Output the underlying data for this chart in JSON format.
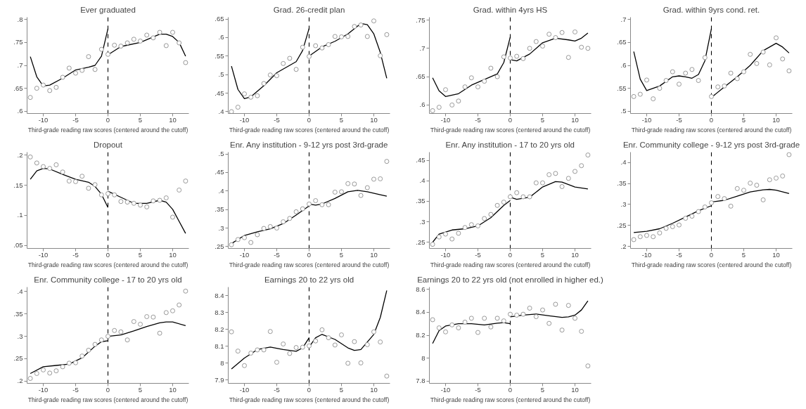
{
  "chart_data": [
    {
      "type": "scatter",
      "title": "Ever graduated",
      "xlabel": "Third-grade reading raw scores (centered around the cutoff)",
      "xlim": [
        -12.5,
        12.5
      ],
      "xticks": [
        -10,
        -5,
        0,
        5,
        10
      ],
      "ylim": [
        0.595,
        0.805
      ],
      "yticks": [
        {
          "value": 0.6,
          "label": ".6"
        },
        {
          "value": 0.65,
          "label": ".65"
        },
        {
          "value": 0.7,
          "label": ".7"
        },
        {
          "value": 0.75,
          "label": ".75"
        },
        {
          "value": 0.8,
          "label": ".8"
        }
      ],
      "ref_lines": [
        {
          "axis": "x",
          "value": 0,
          "line_style": "dashed",
          "color": "#000000"
        }
      ],
      "series": [
        {
          "type": "scatter",
          "marker": "circle",
          "color": "#999999",
          "x": [
            -12,
            -11,
            -10,
            -9,
            -8,
            -7,
            -6,
            -5,
            -4,
            -3,
            -2,
            -1,
            0,
            1,
            2,
            3,
            4,
            5,
            6,
            7,
            8,
            9,
            10,
            11,
            12
          ],
          "values": [
            0.63,
            0.65,
            0.657,
            0.645,
            0.652,
            0.674,
            0.694,
            0.683,
            0.689,
            0.719,
            0.691,
            0.735,
            0.724,
            0.744,
            0.742,
            0.749,
            0.757,
            0.753,
            0.766,
            0.76,
            0.772,
            0.743,
            0.772,
            0.749,
            0.706
          ]
        },
        {
          "type": "line",
          "color": "#000000",
          "x": [
            -12,
            -11,
            -10,
            -9,
            -7,
            -5,
            -3,
            -2,
            -1,
            0
          ],
          "values": [
            0.719,
            0.675,
            0.655,
            0.657,
            0.672,
            0.69,
            0.696,
            0.7,
            0.72,
            0.78
          ]
        },
        {
          "type": "line",
          "color": "#000000",
          "x": [
            0,
            2,
            5,
            8,
            9,
            10,
            11,
            12
          ],
          "values": [
            0.723,
            0.741,
            0.75,
            0.768,
            0.768,
            0.763,
            0.75,
            0.72
          ]
        }
      ]
    },
    {
      "type": "scatter",
      "title": "Grad. 26-credit plan",
      "xlabel": "Third-grade reading raw scores (centered around the cutoff)",
      "xlim": [
        -12.5,
        12.5
      ],
      "xticks": [
        -10,
        -5,
        0,
        5,
        10
      ],
      "ylim": [
        0.395,
        0.655
      ],
      "yticks": [
        {
          "value": 0.4,
          "label": ".4"
        },
        {
          "value": 0.45,
          "label": ".45"
        },
        {
          "value": 0.5,
          "label": ".5"
        },
        {
          "value": 0.55,
          "label": ".55"
        },
        {
          "value": 0.6,
          "label": ".6"
        },
        {
          "value": 0.65,
          "label": ".65"
        }
      ],
      "ref_lines": [
        {
          "axis": "x",
          "value": 0,
          "line_style": "dashed",
          "color": "#000000"
        }
      ],
      "series": [
        {
          "type": "scatter",
          "marker": "circle",
          "color": "#999999",
          "x": [
            -12,
            -11,
            -10,
            -9,
            -8,
            -7,
            -6,
            -5,
            -4,
            -3,
            -2,
            -1,
            0,
            1,
            2,
            3,
            4,
            5,
            6,
            7,
            8,
            9,
            10,
            11,
            12
          ],
          "values": [
            0.4,
            0.412,
            0.448,
            0.439,
            0.443,
            0.476,
            0.499,
            0.497,
            0.53,
            0.544,
            0.514,
            0.574,
            0.549,
            0.578,
            0.572,
            0.581,
            0.603,
            0.602,
            0.603,
            0.63,
            0.634,
            0.603,
            0.645,
            0.551,
            0.608
          ]
        },
        {
          "type": "line",
          "color": "#000000",
          "x": [
            -12,
            -11,
            -10,
            -9,
            -7,
            -5,
            -3,
            -2,
            -1,
            0
          ],
          "values": [
            0.523,
            0.46,
            0.435,
            0.44,
            0.47,
            0.505,
            0.525,
            0.535,
            0.565,
            0.625
          ]
        },
        {
          "type": "line",
          "color": "#000000",
          "x": [
            0,
            2,
            4,
            6,
            8,
            9,
            10,
            11,
            12
          ],
          "values": [
            0.55,
            0.575,
            0.59,
            0.61,
            0.638,
            0.635,
            0.61,
            0.56,
            0.49
          ]
        }
      ]
    },
    {
      "type": "scatter",
      "title": "Grad. within 4yrs HS",
      "xlabel": "Third-grade reading raw scores (centered around the cutoff)",
      "xlim": [
        -12.5,
        12.5
      ],
      "xticks": [
        -10,
        -5,
        0,
        5,
        10
      ],
      "ylim": [
        0.585,
        0.755
      ],
      "yticks": [
        {
          "value": 0.6,
          "label": ".6"
        },
        {
          "value": 0.65,
          "label": ".65"
        },
        {
          "value": 0.7,
          "label": ".7"
        },
        {
          "value": 0.75,
          "label": ".75"
        }
      ],
      "ref_lines": [
        {
          "axis": "x",
          "value": 0,
          "line_style": "dashed",
          "color": "#000000"
        }
      ],
      "series": [
        {
          "type": "scatter",
          "marker": "circle",
          "color": "#999999",
          "x": [
            -12,
            -11,
            -10,
            -9,
            -8,
            -7,
            -6,
            -5,
            -4,
            -3,
            -2,
            -1,
            0,
            1,
            2,
            3,
            4,
            5,
            6,
            7,
            8,
            9,
            10,
            11,
            12
          ],
          "values": [
            0.59,
            0.596,
            0.627,
            0.6,
            0.607,
            0.632,
            0.648,
            0.632,
            0.642,
            0.665,
            0.65,
            0.685,
            0.683,
            0.686,
            0.682,
            0.7,
            0.712,
            0.704,
            0.725,
            0.719,
            0.728,
            0.684,
            0.729,
            0.702,
            0.7
          ]
        },
        {
          "type": "line",
          "color": "#000000",
          "x": [
            -12,
            -11,
            -10,
            -8,
            -6,
            -4,
            -2,
            -1,
            0
          ],
          "values": [
            0.648,
            0.625,
            0.615,
            0.62,
            0.635,
            0.645,
            0.655,
            0.675,
            0.72
          ]
        },
        {
          "type": "line",
          "color": "#000000",
          "x": [
            0,
            1,
            3,
            5,
            7,
            9,
            10,
            11,
            12
          ],
          "values": [
            0.68,
            0.678,
            0.69,
            0.71,
            0.718,
            0.715,
            0.713,
            0.718,
            0.727
          ]
        }
      ]
    },
    {
      "type": "scatter",
      "title": "Grad. within 9yrs cond. ret.",
      "xlabel": "Third-grade reading raw scores (centered around the cutoff)",
      "xlim": [
        -12.5,
        12.5
      ],
      "xticks": [
        -10,
        -5,
        0,
        5,
        10
      ],
      "ylim": [
        0.495,
        0.705
      ],
      "yticks": [
        {
          "value": 0.5,
          "label": ".5"
        },
        {
          "value": 0.55,
          "label": ".55"
        },
        {
          "value": 0.6,
          "label": ".6"
        },
        {
          "value": 0.65,
          "label": ".65"
        },
        {
          "value": 0.7,
          "label": ".7"
        }
      ],
      "ref_lines": [
        {
          "axis": "x",
          "value": 0,
          "line_style": "dashed",
          "color": "#000000"
        }
      ],
      "series": [
        {
          "type": "scatter",
          "marker": "circle",
          "color": "#999999",
          "x": [
            -12,
            -11,
            -10,
            -9,
            -8,
            -7,
            -6,
            -5,
            -4,
            -3,
            -2,
            -1,
            0,
            1,
            2,
            3,
            4,
            5,
            6,
            7,
            8,
            9,
            10,
            11,
            12
          ],
          "values": [
            0.532,
            0.537,
            0.568,
            0.527,
            0.55,
            0.567,
            0.586,
            0.559,
            0.583,
            0.591,
            0.567,
            0.617,
            0.532,
            0.553,
            0.555,
            0.583,
            0.571,
            0.586,
            0.624,
            0.604,
            0.629,
            0.601,
            0.66,
            0.614,
            0.588
          ]
        },
        {
          "type": "line",
          "color": "#000000",
          "x": [
            -12,
            -11,
            -10,
            -8,
            -6,
            -5,
            -4,
            -3,
            -2,
            -1,
            0
          ],
          "values": [
            0.63,
            0.57,
            0.545,
            0.555,
            0.575,
            0.577,
            0.575,
            0.572,
            0.58,
            0.61,
            0.68
          ]
        },
        {
          "type": "line",
          "color": "#000000",
          "x": [
            0,
            2,
            4,
            6,
            8,
            10,
            11,
            12
          ],
          "values": [
            0.53,
            0.553,
            0.575,
            0.6,
            0.632,
            0.648,
            0.64,
            0.627
          ]
        }
      ]
    },
    {
      "type": "scatter",
      "title": "Dropout",
      "xlabel": "Third-grade reading raw scores (centered around the cutoff)",
      "xlim": [
        -12.5,
        12.5
      ],
      "xticks": [
        -10,
        -5,
        0,
        5,
        10
      ],
      "ylim": [
        0.045,
        0.205
      ],
      "yticks": [
        {
          "value": 0.05,
          "label": ".05"
        },
        {
          "value": 0.1,
          "label": ".1"
        },
        {
          "value": 0.15,
          "label": ".15"
        },
        {
          "value": 0.2,
          "label": ".2"
        }
      ],
      "ref_lines": [
        {
          "axis": "x",
          "value": 0,
          "line_style": "dashed",
          "color": "#000000"
        }
      ],
      "series": [
        {
          "type": "scatter",
          "marker": "circle",
          "color": "#999999",
          "x": [
            -12,
            -11,
            -10,
            -9,
            -8,
            -7,
            -6,
            -5,
            -4,
            -3,
            -2,
            -1,
            0,
            1,
            2,
            3,
            4,
            5,
            6,
            7,
            8,
            9,
            10,
            11,
            12
          ],
          "values": [
            0.197,
            0.187,
            0.181,
            0.178,
            0.184,
            0.172,
            0.157,
            0.156,
            0.165,
            0.145,
            0.151,
            0.134,
            0.136,
            0.134,
            0.123,
            0.122,
            0.12,
            0.117,
            0.114,
            0.124,
            0.125,
            0.129,
            0.097,
            0.142,
            0.157
          ]
        },
        {
          "type": "line",
          "color": "#000000",
          "x": [
            -12,
            -11,
            -10,
            -9,
            -7,
            -5,
            -3,
            -2,
            -1,
            0
          ],
          "values": [
            0.16,
            0.174,
            0.178,
            0.177,
            0.168,
            0.16,
            0.155,
            0.148,
            0.135,
            0.113
          ]
        },
        {
          "type": "line",
          "color": "#000000",
          "x": [
            0,
            2,
            4,
            6,
            8,
            9,
            10,
            11,
            12
          ],
          "values": [
            0.14,
            0.13,
            0.12,
            0.12,
            0.125,
            0.122,
            0.11,
            0.09,
            0.07
          ]
        }
      ]
    },
    {
      "type": "scatter",
      "title": "Enr. Any institution - 9-12 yrs post 3rd-grade",
      "xlabel": "Third-grade reading raw scores (centered around the cutoff)",
      "xlim": [
        -12.5,
        12.5
      ],
      "xticks": [
        -10,
        -5,
        0,
        5,
        10
      ],
      "ylim": [
        0.245,
        0.505
      ],
      "yticks": [
        {
          "value": 0.25,
          "label": ".25"
        },
        {
          "value": 0.3,
          "label": ".3"
        },
        {
          "value": 0.35,
          "label": ".35"
        },
        {
          "value": 0.4,
          "label": ".4"
        },
        {
          "value": 0.45,
          "label": ".45"
        },
        {
          "value": 0.5,
          "label": ".5"
        }
      ],
      "ref_lines": [
        {
          "axis": "x",
          "value": 0,
          "line_style": "dashed",
          "color": "#000000"
        }
      ],
      "series": [
        {
          "type": "scatter",
          "marker": "circle",
          "color": "#999999",
          "x": [
            -12,
            -11,
            -10,
            -9,
            -8,
            -7,
            -6,
            -5,
            -4,
            -3,
            -2,
            -1,
            0,
            1,
            2,
            3,
            4,
            5,
            6,
            7,
            8,
            9,
            10,
            11,
            12
          ],
          "values": [
            0.255,
            0.269,
            0.274,
            0.261,
            0.282,
            0.299,
            0.304,
            0.3,
            0.317,
            0.326,
            0.344,
            0.352,
            0.365,
            0.374,
            0.363,
            0.363,
            0.397,
            0.398,
            0.42,
            0.419,
            0.388,
            0.409,
            0.432,
            0.433,
            0.48
          ]
        },
        {
          "type": "line",
          "color": "#000000",
          "x": [
            -12,
            -10,
            -8,
            -6,
            -4,
            -2,
            0
          ],
          "values": [
            0.258,
            0.28,
            0.29,
            0.298,
            0.312,
            0.335,
            0.36
          ]
        },
        {
          "type": "line",
          "color": "#000000",
          "x": [
            0,
            1,
            2,
            4,
            6,
            7.5,
            9,
            11,
            12
          ],
          "values": [
            0.365,
            0.362,
            0.365,
            0.38,
            0.398,
            0.402,
            0.398,
            0.39,
            0.386
          ]
        }
      ]
    },
    {
      "type": "scatter",
      "title": "Enr. Any institution - 17 to 20 yrs old",
      "xlabel": "Third-grade reading raw scores (centered around the cutoff)",
      "xlim": [
        -12.5,
        12.5
      ],
      "xticks": [
        -10,
        -5,
        0,
        5,
        10
      ],
      "ylim": [
        0.235,
        0.47
      ],
      "yticks": [
        {
          "value": 0.25,
          "label": ".25"
        },
        {
          "value": 0.3,
          "label": ".3"
        },
        {
          "value": 0.35,
          "label": ".35"
        },
        {
          "value": 0.4,
          "label": ".4"
        },
        {
          "value": 0.45,
          "label": ".45"
        }
      ],
      "ref_lines": [
        {
          "axis": "x",
          "value": 0,
          "line_style": "dashed",
          "color": "#000000"
        }
      ],
      "series": [
        {
          "type": "scatter",
          "marker": "circle",
          "color": "#999999",
          "x": [
            -12,
            -11,
            -10,
            -9,
            -8,
            -7,
            -6,
            -5,
            -4,
            -3,
            -2,
            -1,
            0,
            1,
            2,
            3,
            4,
            5,
            6,
            7,
            8,
            9,
            10,
            11,
            12
          ],
          "values": [
            0.245,
            0.263,
            0.27,
            0.258,
            0.272,
            0.286,
            0.293,
            0.29,
            0.308,
            0.318,
            0.34,
            0.348,
            0.361,
            0.371,
            0.361,
            0.361,
            0.395,
            0.395,
            0.415,
            0.418,
            0.386,
            0.406,
            0.423,
            0.437,
            0.463
          ]
        },
        {
          "type": "line",
          "color": "#000000",
          "x": [
            -12,
            -11,
            -9,
            -7,
            -5,
            -3,
            -2,
            -1,
            0
          ],
          "values": [
            0.25,
            0.27,
            0.28,
            0.283,
            0.29,
            0.31,
            0.325,
            0.34,
            0.352
          ]
        },
        {
          "type": "line",
          "color": "#000000",
          "x": [
            0,
            1,
            3,
            5,
            7,
            8,
            10,
            12
          ],
          "values": [
            0.36,
            0.355,
            0.36,
            0.385,
            0.398,
            0.397,
            0.385,
            0.38
          ]
        }
      ]
    },
    {
      "type": "scatter",
      "title": "Enr. Community college - 9-12 yrs post 3rd-grade",
      "xlabel": "Third-grade reading raw scores (centered around the cutoff)",
      "xlim": [
        -12.5,
        12.5
      ],
      "xticks": [
        -10,
        -5,
        0,
        5,
        10
      ],
      "ylim": [
        0.195,
        0.425
      ],
      "yticks": [
        {
          "value": 0.2,
          "label": ".2"
        },
        {
          "value": 0.25,
          "label": ".25"
        },
        {
          "value": 0.3,
          "label": ".3"
        },
        {
          "value": 0.35,
          "label": ".35"
        },
        {
          "value": 0.4,
          "label": ".4"
        }
      ],
      "ref_lines": [
        {
          "axis": "x",
          "value": 0,
          "line_style": "dashed",
          "color": "#000000"
        }
      ],
      "series": [
        {
          "type": "scatter",
          "marker": "circle",
          "color": "#999999",
          "x": [
            -12,
            -11,
            -10,
            -9,
            -8,
            -7,
            -6,
            -5,
            -4,
            -3,
            -2,
            -1,
            0,
            1,
            2,
            3,
            4,
            5,
            6,
            7,
            8,
            9,
            10,
            11,
            12
          ],
          "values": [
            0.216,
            0.223,
            0.226,
            0.223,
            0.232,
            0.243,
            0.247,
            0.251,
            0.267,
            0.272,
            0.283,
            0.294,
            0.304,
            0.319,
            0.314,
            0.296,
            0.338,
            0.334,
            0.351,
            0.346,
            0.311,
            0.359,
            0.363,
            0.368,
            0.419
          ]
        },
        {
          "type": "line",
          "color": "#000000",
          "x": [
            -12,
            -10,
            -8,
            -6,
            -4,
            -2,
            0
          ],
          "values": [
            0.233,
            0.236,
            0.242,
            0.255,
            0.27,
            0.285,
            0.297
          ]
        },
        {
          "type": "line",
          "color": "#000000",
          "x": [
            0,
            2,
            4,
            6,
            8,
            9,
            10,
            12
          ],
          "values": [
            0.306,
            0.31,
            0.32,
            0.33,
            0.335,
            0.336,
            0.334,
            0.326
          ]
        }
      ]
    },
    {
      "type": "scatter",
      "title": "Enr. Community college - 17 to 20 yrs old",
      "xlabel": "Third-grade reading raw scores (centered around the cutoff)",
      "xlim": [
        -12.5,
        12.5
      ],
      "xticks": [
        -10,
        -5,
        0,
        5,
        10
      ],
      "ylim": [
        0.195,
        0.41
      ],
      "yticks": [
        {
          "value": 0.2,
          "label": ".2"
        },
        {
          "value": 0.25,
          "label": ".25"
        },
        {
          "value": 0.3,
          "label": ".3"
        },
        {
          "value": 0.35,
          "label": ".35"
        },
        {
          "value": 0.4,
          "label": ".4"
        }
      ],
      "ref_lines": [
        {
          "axis": "x",
          "value": 0,
          "line_style": "dashed",
          "color": "#000000"
        }
      ],
      "series": [
        {
          "type": "scatter",
          "marker": "circle",
          "color": "#999999",
          "x": [
            -12,
            -11,
            -10,
            -9,
            -8,
            -7,
            -6,
            -5,
            -4,
            -3,
            -2,
            -1,
            0,
            1,
            2,
            3,
            4,
            5,
            6,
            7,
            8,
            9,
            10,
            11,
            12
          ],
          "values": [
            0.206,
            0.217,
            0.225,
            0.218,
            0.223,
            0.232,
            0.24,
            0.241,
            0.256,
            0.269,
            0.282,
            0.292,
            0.3,
            0.313,
            0.31,
            0.292,
            0.333,
            0.327,
            0.344,
            0.343,
            0.307,
            0.353,
            0.357,
            0.37,
            0.401
          ]
        },
        {
          "type": "line",
          "color": "#000000",
          "x": [
            -12,
            -10,
            -8,
            -6,
            -4,
            -2,
            -1,
            0
          ],
          "values": [
            0.217,
            0.232,
            0.235,
            0.238,
            0.252,
            0.278,
            0.288,
            0.29
          ]
        },
        {
          "type": "line",
          "color": "#000000",
          "x": [
            0,
            2,
            4,
            6,
            8,
            9,
            10,
            12
          ],
          "values": [
            0.3,
            0.303,
            0.312,
            0.322,
            0.33,
            0.332,
            0.332,
            0.324
          ]
        }
      ]
    },
    {
      "type": "scatter",
      "title": "Earnings 20 to 22 yrs old",
      "xlabel": "Third-grade reading raw scores (centered around the cutoff)",
      "xlim": [
        -12.5,
        12.5
      ],
      "xticks": [
        -10,
        -5,
        0,
        5,
        10
      ],
      "ylim": [
        7.88,
        8.45
      ],
      "yticks": [
        7.9,
        8,
        8.1,
        8.2,
        8.3,
        8.4
      ],
      "ref_lines": [
        {
          "axis": "x",
          "value": 0,
          "line_style": "dashed",
          "color": "#000000"
        }
      ],
      "series": [
        {
          "type": "scatter",
          "marker": "circle",
          "color": "#999999",
          "x": [
            -12,
            -11,
            -10,
            -9,
            -8,
            -7,
            -6,
            -5,
            -4,
            -3,
            -2,
            -1,
            0,
            1,
            2,
            3,
            4,
            5,
            6,
            7,
            8,
            9,
            10,
            11,
            12
          ],
          "values": [
            8.185,
            8.071,
            7.985,
            8.059,
            8.078,
            8.078,
            8.187,
            8.005,
            8.113,
            8.057,
            8.092,
            8.094,
            8.102,
            8.131,
            8.197,
            8.15,
            8.107,
            8.167,
            7.999,
            8.127,
            8.001,
            8.109,
            8.185,
            8.125,
            7.923
          ]
        },
        {
          "type": "line",
          "color": "#000000",
          "x": [
            -12,
            -10,
            -8,
            -6,
            -4,
            -2,
            -1,
            0
          ],
          "values": [
            7.965,
            8.03,
            8.08,
            8.095,
            8.08,
            8.07,
            8.09,
            8.15
          ]
        },
        {
          "type": "line",
          "color": "#000000",
          "x": [
            0,
            1,
            2,
            4,
            6,
            7,
            8,
            10,
            11,
            12
          ],
          "values": [
            8.095,
            8.15,
            8.17,
            8.14,
            8.09,
            8.075,
            8.08,
            8.17,
            8.27,
            8.43
          ]
        }
      ]
    },
    {
      "type": "scatter",
      "title": "Earnings 20 to 22 yrs old (not enrolled in higher ed.)",
      "xlabel": "Third-grade reading raw scores (centered around the cutoff)",
      "xlim": [
        -12.5,
        12.5
      ],
      "xticks": [
        -10,
        -5,
        0,
        5,
        10
      ],
      "ylim": [
        7.78,
        8.62
      ],
      "yticks": [
        7.8,
        8,
        8.2,
        8.4,
        8.6
      ],
      "ref_lines": [
        {
          "axis": "x",
          "value": 0,
          "line_style": "dashed",
          "color": "#000000"
        }
      ],
      "series": [
        {
          "type": "scatter",
          "marker": "circle",
          "color": "#999999",
          "x": [
            -12,
            -11,
            -10,
            -9,
            -8,
            -7,
            -6,
            -5,
            -4,
            -3,
            -2,
            -1,
            0,
            1,
            2,
            3,
            4,
            5,
            6,
            7,
            8,
            9,
            10,
            11,
            12
          ],
          "values": [
            8.335,
            8.264,
            8.229,
            8.29,
            8.264,
            8.314,
            8.348,
            8.224,
            8.348,
            8.272,
            8.348,
            8.325,
            8.383,
            8.375,
            8.383,
            8.436,
            8.362,
            8.42,
            8.303,
            8.47,
            8.245,
            8.46,
            8.348,
            8.234,
            7.932
          ]
        },
        {
          "type": "line",
          "color": "#000000",
          "x": [
            -12,
            -11,
            -10,
            -8,
            -6,
            -4,
            -2,
            -1,
            0
          ],
          "values": [
            8.128,
            8.24,
            8.28,
            8.3,
            8.3,
            8.29,
            8.305,
            8.31,
            8.3
          ]
        },
        {
          "type": "line",
          "color": "#000000",
          "x": [
            0,
            2,
            4,
            6,
            8,
            9,
            10,
            11,
            12
          ],
          "values": [
            8.36,
            8.375,
            8.385,
            8.37,
            8.355,
            8.36,
            8.375,
            8.42,
            8.5
          ]
        }
      ]
    }
  ]
}
